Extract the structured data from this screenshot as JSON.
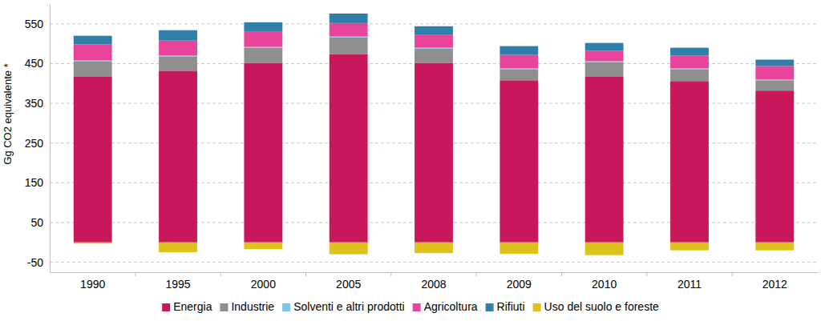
{
  "chart_data": {
    "type": "bar",
    "stacked": true,
    "grid": true,
    "legend": "bottom",
    "y_label": "Gg CO2 equivalente *",
    "categories": [
      "1990",
      "1995",
      "2000",
      "2005",
      "2008",
      "2009",
      "2010",
      "2011",
      "2012"
    ],
    "ylim": [
      -75,
      600
    ],
    "yticks": [
      -50,
      50,
      150,
      250,
      350,
      450,
      550
    ],
    "series": [
      {
        "name": "Energia",
        "color": "#c8175a",
        "values": [
          418,
          432,
          452,
          474,
          452,
          408,
          418,
          406,
          382
        ]
      },
      {
        "name": "Industrie",
        "color": "#8f8f8f",
        "values": [
          38,
          36,
          38,
          42,
          36,
          28,
          36,
          30,
          26
        ]
      },
      {
        "name": "Solventi e altri prodotti",
        "color": "#7fc6ea",
        "values": [
          2,
          2,
          2,
          2,
          2,
          2,
          2,
          2,
          2
        ]
      },
      {
        "name": "Agricoltura",
        "color": "#e8449a",
        "values": [
          40,
          38,
          38,
          34,
          32,
          34,
          26,
          32,
          34
        ]
      },
      {
        "name": "Rifiuti",
        "color": "#2f7fa8",
        "values": [
          22,
          26,
          24,
          24,
          22,
          22,
          20,
          20,
          16
        ]
      },
      {
        "name": "Uso del suolo e foreste",
        "color": "#ddc21c",
        "values": [
          -3,
          -25,
          -17,
          -30,
          -27,
          -29,
          -32,
          -20,
          -20
        ]
      }
    ]
  }
}
